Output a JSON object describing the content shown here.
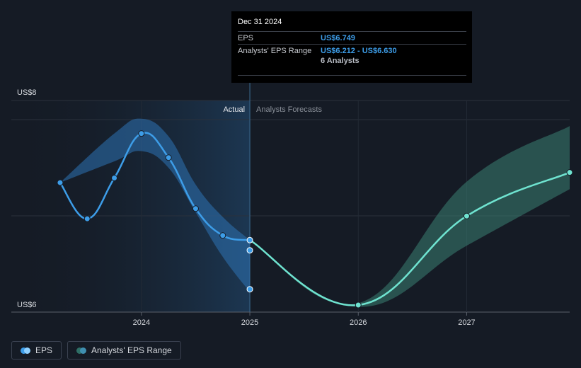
{
  "chart_data": {
    "type": "line",
    "y_axis": {
      "top_label": "US$8",
      "bottom_label": "US$6",
      "ylim": [
        6,
        8
      ]
    },
    "x_ticks": [
      {
        "label": "2024",
        "x": 2024.0
      },
      {
        "label": "2025",
        "x": 2025.0
      },
      {
        "label": "2026",
        "x": 2026.0
      },
      {
        "label": "2027",
        "x": 2027.0
      }
    ],
    "xlim": [
      2022.8,
      2027.95
    ],
    "divider_x": 2025.0,
    "region_labels": {
      "actual": "Actual",
      "forecast": "Analysts Forecasts"
    },
    "series": [
      {
        "name": "EPS",
        "kind": "actual",
        "color": "#3d9de8",
        "points": [
          {
            "x": 2023.25,
            "y": 7.32
          },
          {
            "x": 2023.5,
            "y": 6.93
          },
          {
            "x": 2023.75,
            "y": 7.37
          },
          {
            "x": 2024.0,
            "y": 7.85
          },
          {
            "x": 2024.25,
            "y": 7.59
          },
          {
            "x": 2024.5,
            "y": 7.04
          },
          {
            "x": 2024.75,
            "y": 6.75
          },
          {
            "x": 2025.0,
            "y": 6.7
          }
        ]
      },
      {
        "name": "Analysts' EPS Range (historical)",
        "kind": "band",
        "color": "#2e72b5",
        "upper": [
          {
            "x": 2023.25,
            "y": 7.32
          },
          {
            "x": 2023.75,
            "y": 7.85
          },
          {
            "x": 2024.0,
            "y": 8.01
          },
          {
            "x": 2024.25,
            "y": 7.82
          },
          {
            "x": 2024.5,
            "y": 7.3
          },
          {
            "x": 2024.75,
            "y": 6.95
          },
          {
            "x": 2025.0,
            "y": 6.7
          }
        ],
        "lower": [
          {
            "x": 2023.25,
            "y": 7.32
          },
          {
            "x": 2023.75,
            "y": 7.55
          },
          {
            "x": 2024.0,
            "y": 7.66
          },
          {
            "x": 2024.25,
            "y": 7.48
          },
          {
            "x": 2024.5,
            "y": 7.0
          },
          {
            "x": 2024.75,
            "y": 6.52
          },
          {
            "x": 2025.0,
            "y": 6.14
          }
        ]
      },
      {
        "name": "EPS forecast",
        "kind": "forecast",
        "color": "#6fe3d0",
        "points": [
          {
            "x": 2025.0,
            "y": 6.7
          },
          {
            "x": 2026.0,
            "y": 6.0
          },
          {
            "x": 2027.0,
            "y": 6.96
          },
          {
            "x": 2027.95,
            "y": 7.43
          }
        ]
      },
      {
        "name": "Analysts' EPS Range (forecast)",
        "kind": "band",
        "color": "#3b7f73",
        "upper": [
          {
            "x": 2025.0,
            "y": 6.7
          },
          {
            "x": 2026.0,
            "y": 6.02
          },
          {
            "x": 2027.0,
            "y": 7.33
          },
          {
            "x": 2027.95,
            "y": 7.93
          }
        ],
        "lower": [
          {
            "x": 2025.0,
            "y": 6.7
          },
          {
            "x": 2026.0,
            "y": 5.98
          },
          {
            "x": 2027.0,
            "y": 6.64
          },
          {
            "x": 2027.95,
            "y": 7.25
          }
        ]
      }
    ],
    "range_markers": [
      {
        "x": 2025.0,
        "y": 6.59
      },
      {
        "x": 2025.0,
        "y": 6.17
      }
    ],
    "grid": true,
    "legend_position": "bottom-left"
  },
  "tooltip": {
    "date": "Dec 31 2024",
    "eps_label": "EPS",
    "eps_value": "US$6.749",
    "range_label": "Analysts' EPS Range",
    "range_value": "US$6.212 - US$6.630",
    "analysts": "6 Analysts"
  },
  "legend": {
    "eps_label": "EPS",
    "range_label": "Analysts' EPS Range",
    "eps_colors": [
      "#3d9de8",
      "#8fd0ff"
    ],
    "range_colors": [
      "#2e6f66",
      "#3f8fb0"
    ]
  }
}
